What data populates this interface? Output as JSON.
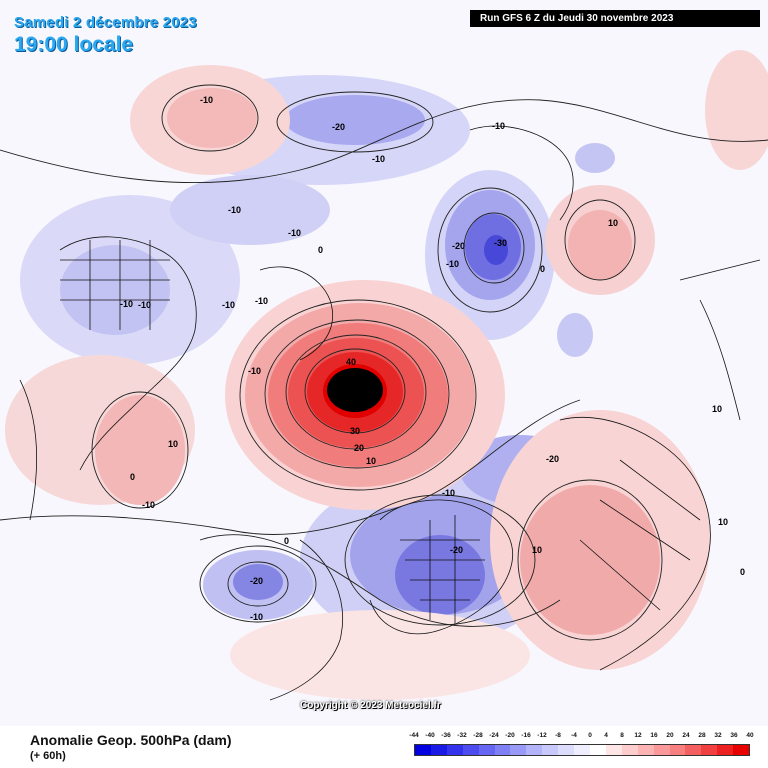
{
  "header": {
    "date": "Samedi 2 décembre 2023",
    "time": "19:00 locale",
    "run_info": "Run GFS 6 Z du Jeudi 30 novembre 2023"
  },
  "map": {
    "copyright": "Copyright © 2023 Meteociel.fr",
    "contour_labels": [
      "-10",
      "-20",
      "-10",
      "-10",
      "-10",
      "-20",
      "-30",
      "-10",
      "0",
      "10",
      "-10",
      "-10",
      "-10",
      "-10",
      "0",
      "40",
      "30",
      "20",
      "10",
      "10",
      "-10",
      "-10",
      "-20",
      "-10",
      "-20",
      "10",
      "10",
      "10",
      "-20",
      "-10",
      "0",
      "0",
      "0",
      "-10"
    ]
  },
  "footer": {
    "parameter": "Anomalie Geop. 500hPa (dam)",
    "forecast_hour": "(+ 60h)"
  },
  "legend": {
    "labels": [
      "-44",
      "-40",
      "-36",
      "-32",
      "-28",
      "-24",
      "-20",
      "-16",
      "-12",
      "-8",
      "-4",
      "0",
      "4",
      "8",
      "12",
      "16",
      "20",
      "24",
      "28",
      "32",
      "36",
      "40"
    ],
    "colors": [
      "#0000e0",
      "#1a1ae6",
      "#3333eb",
      "#4d4def",
      "#6666f2",
      "#8080f5",
      "#9999f7",
      "#b3b3fa",
      "#c8c8fb",
      "#dcdcfd",
      "#eeeefe",
      "#ffffff",
      "#fee6e6",
      "#fdcccc",
      "#fcb3b3",
      "#fa9999",
      "#f77f7f",
      "#f46060",
      "#f04040",
      "#ec2020",
      "#e80000"
    ]
  }
}
